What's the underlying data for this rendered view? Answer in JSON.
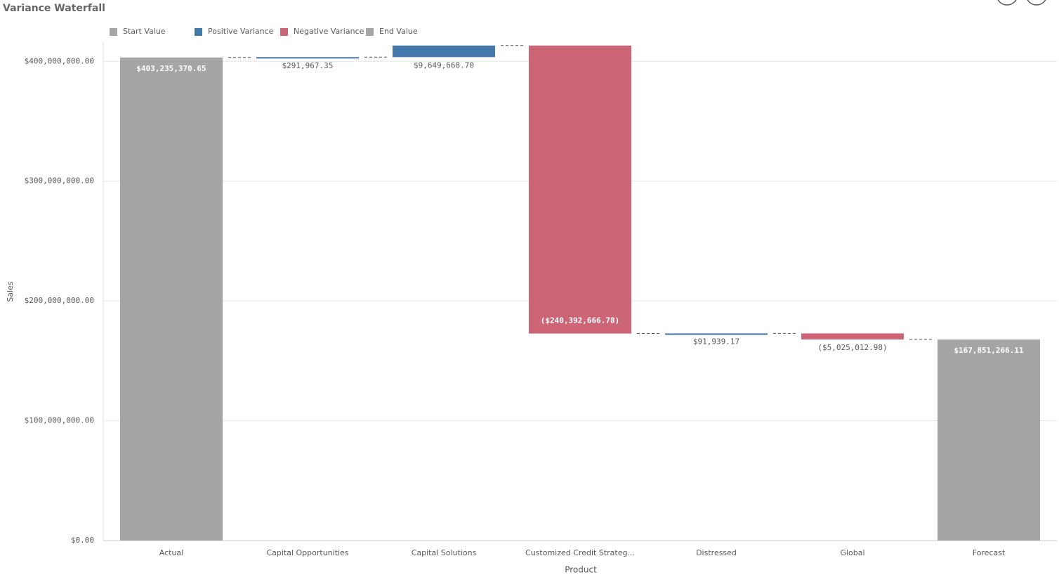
{
  "chart_data": {
    "type": "waterfall",
    "title": "Variance Waterfall",
    "x_label": "Product",
    "y_label": "Sales",
    "legend": [
      {
        "name": "Start Value",
        "color": "#a5a5a5"
      },
      {
        "name": "Positive Variance",
        "color": "#4477aa"
      },
      {
        "name": "Negative Variance",
        "color": "#cc6677"
      },
      {
        "name": "End Value",
        "color": "#a5a5a5"
      }
    ],
    "categories": [
      "Actual",
      "Capital Opportunities",
      "Capital Solutions",
      "Customized Credit Strateg...",
      "Distressed",
      "Global",
      "Forecast"
    ],
    "values": [
      403235370.65,
      291967.35,
      9649668.7,
      -240392666.78,
      91939.17,
      -5025012.98,
      167851266.11
    ],
    "value_labels": [
      "$403,235,370.65",
      "$291,967.35",
      "$9,649,668.70",
      "($240,392,666.78)",
      "$91,939.17",
      "($5,025,012.98)",
      "$167,851,266.11"
    ],
    "ylim": [
      0,
      416000000
    ],
    "yticks": [
      {
        "value": 0,
        "label": "$0.00"
      },
      {
        "value": 100000000,
        "label": "$100,000,000.00"
      },
      {
        "value": 200000000,
        "label": "$200,000,000.00"
      },
      {
        "value": 300000000,
        "label": "$300,000,000.00"
      },
      {
        "value": 400000000,
        "label": "$400,000,000.00"
      }
    ],
    "grid": true
  }
}
